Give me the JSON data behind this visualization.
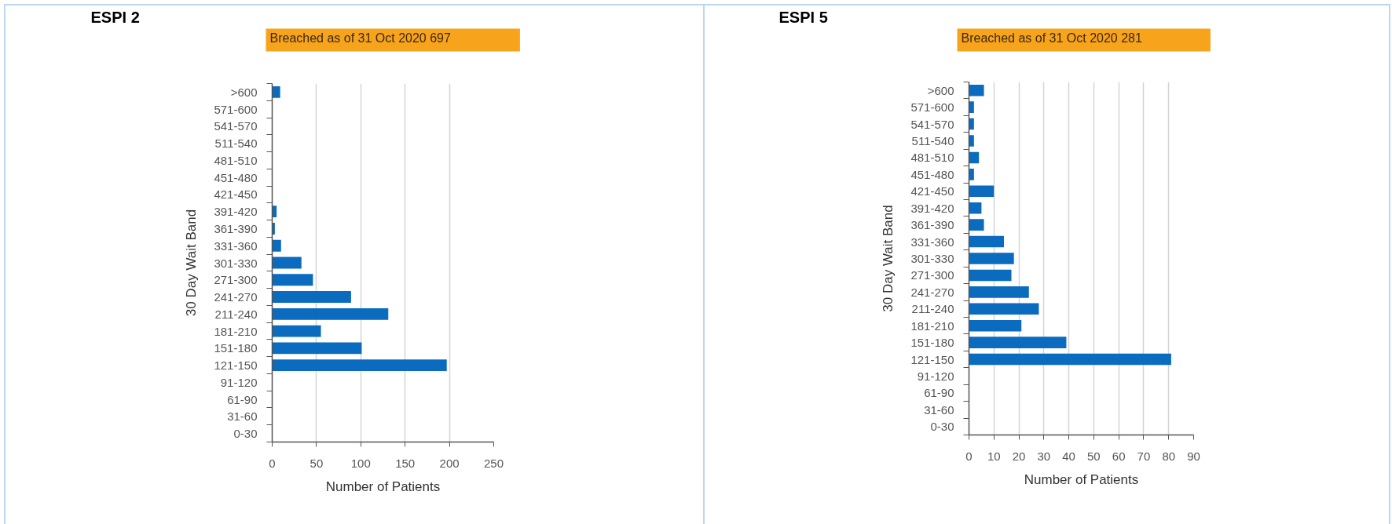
{
  "chart_data": [
    {
      "type": "bar",
      "orientation": "horizontal",
      "title": "ESPI 2",
      "subtitle": "Breached as of 31 Oct 2020 697",
      "xlabel": "Number of Patients",
      "ylabel": "30 Day Wait Band",
      "categories": [
        ">600",
        "571-600",
        "541-570",
        "511-540",
        "481-510",
        "451-480",
        "421-450",
        "391-420",
        "361-390",
        "331-360",
        "301-330",
        "271-300",
        "241-270",
        "211-240",
        "181-210",
        "151-180",
        "121-150",
        "91-120",
        "61-90",
        "31-60",
        "0-30"
      ],
      "values": [
        9,
        0,
        0,
        0,
        0,
        0,
        0,
        5,
        3,
        10,
        33,
        46,
        89,
        131,
        55,
        101,
        197,
        0,
        0,
        0,
        0
      ],
      "color": "#0b6bbf",
      "xlim": [
        0,
        250
      ],
      "xticks": [
        0,
        50,
        100,
        150,
        200,
        250
      ],
      "grid": "x"
    },
    {
      "type": "bar",
      "orientation": "horizontal",
      "title": "ESPI 5",
      "subtitle": "Breached as of 31 Oct 2020 281",
      "xlabel": "Number of Patients",
      "ylabel": "30 Day Wait Band",
      "categories": [
        ">600",
        "571-600",
        "541-570",
        "511-540",
        "481-510",
        "451-480",
        "421-450",
        "391-420",
        "361-390",
        "331-360",
        "301-330",
        "271-300",
        "241-270",
        "211-240",
        "181-210",
        "151-180",
        "121-150",
        "91-120",
        "61-90",
        "31-60",
        "0-30"
      ],
      "values": [
        6,
        2,
        2,
        2,
        4,
        2,
        10,
        5,
        6,
        14,
        18,
        17,
        24,
        28,
        21,
        39,
        81,
        0,
        0,
        0,
        0
      ],
      "color": "#0b6bbf",
      "xlim": [
        0,
        90
      ],
      "xticks": [
        0,
        10,
        20,
        30,
        40,
        50,
        60,
        70,
        80,
        90
      ],
      "grid": "x"
    }
  ]
}
